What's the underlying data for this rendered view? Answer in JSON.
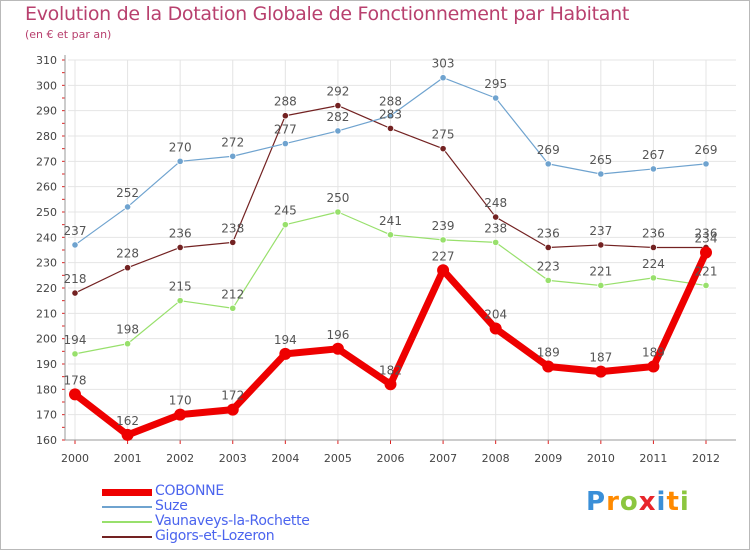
{
  "chart_data": {
    "type": "line",
    "title": "Evolution de la Dotation Globale de Fonctionnement par Habitant",
    "subtitle": "(en € et par an)",
    "xlabel": "",
    "ylabel": "",
    "ylim": [
      160,
      310
    ],
    "yticks": [
      "160",
      "170",
      "180",
      "190",
      "200",
      "210",
      "220",
      "230",
      "240",
      "250",
      "260",
      "270",
      "280",
      "290",
      "300",
      "310"
    ],
    "categories": [
      "2000",
      "2001",
      "2002",
      "2003",
      "2004",
      "2005",
      "2006",
      "2007",
      "2008",
      "2009",
      "2010",
      "2011",
      "2012"
    ],
    "grid": true,
    "legend_position": "bottom-left",
    "series": [
      {
        "name": "Gigors-et-Lozeron",
        "color": "#732222",
        "values": [
          218,
          228,
          236,
          238,
          288,
          292,
          283,
          275,
          248,
          236,
          237,
          236,
          236
        ]
      },
      {
        "name": "Vaunaveys-la-Rochette",
        "color": "#98e06c",
        "values": [
          194,
          198,
          215,
          212,
          245,
          250,
          241,
          239,
          238,
          223,
          221,
          224,
          221
        ]
      },
      {
        "name": "Suze",
        "color": "#6fa3cf",
        "values": [
          237,
          252,
          270,
          272,
          277,
          282,
          288,
          303,
          295,
          269,
          265,
          267,
          269
        ]
      },
      {
        "name": "COBONNE",
        "color": "#ee0000",
        "values": [
          178,
          162,
          170,
          172,
          194,
          196,
          182,
          227,
          204,
          189,
          187,
          189,
          234
        ]
      }
    ],
    "legend_order": [
      "COBONNE",
      "Suze",
      "Vaunaveys-la-Rochette",
      "Gigors-et-Lozeron"
    ]
  },
  "brand": {
    "letters": [
      "P",
      "r",
      "o",
      "x",
      "i",
      "t",
      "i"
    ],
    "colors": [
      "#3a8fd8",
      "#ff8a00",
      "#8cc63f",
      "#e8262b",
      "#3a8fd8",
      "#ff8a00",
      "#8cc63f"
    ]
  }
}
